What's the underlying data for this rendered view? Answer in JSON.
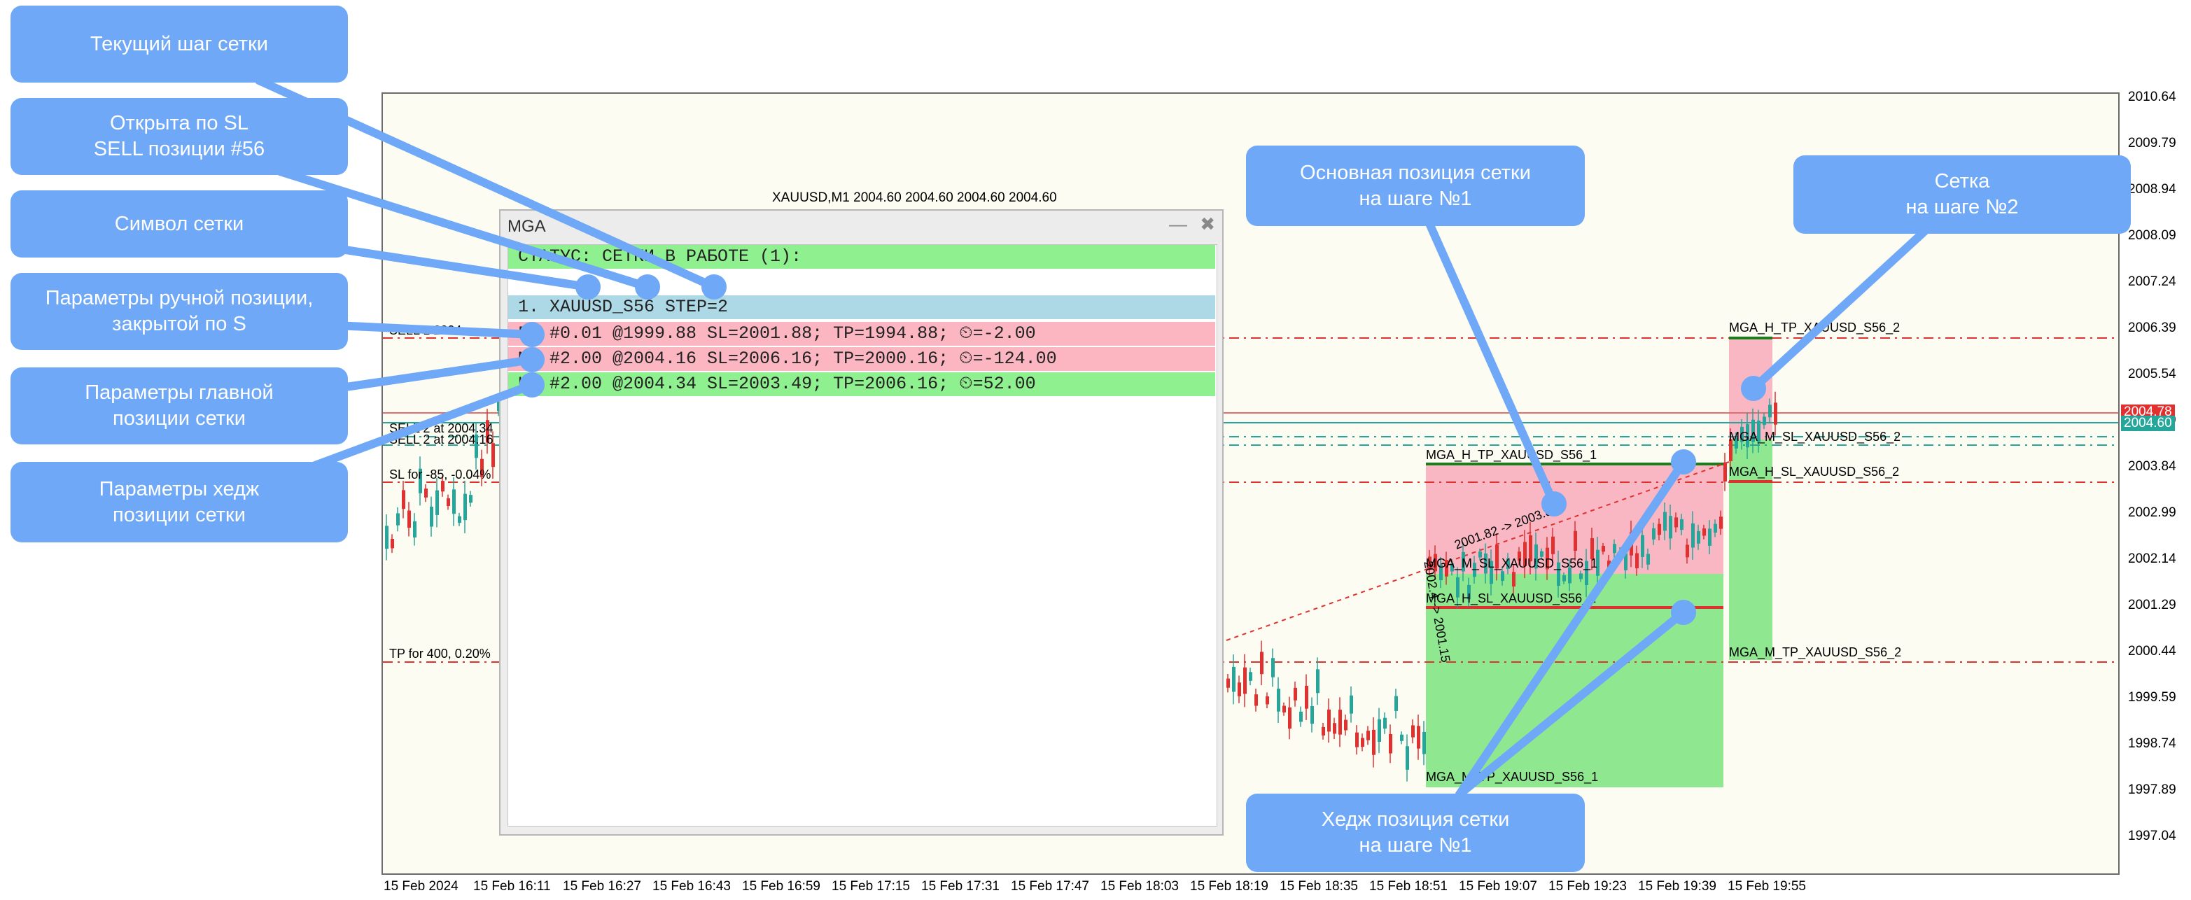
{
  "chart": {
    "header": "XAUUSD,M1  2004.60 2004.60 2004.60 2004.60",
    "price_ticks": [
      "2010.64",
      "2009.79",
      "2008.94",
      "2008.09",
      "2007.24",
      "2006.39",
      "2005.54",
      "2004.69",
      "2003.84",
      "2002.99",
      "2002.14",
      "2001.29",
      "2000.44",
      "1999.59",
      "1998.74",
      "1997.89",
      "1997.04"
    ],
    "price_current_red": "2004.78",
    "price_current_teal": "2004.60",
    "time_ticks": [
      "15 Feb 2024",
      "15 Feb 16:11",
      "15 Feb 16:27",
      "15 Feb 16:43",
      "15 Feb 16:59",
      "15 Feb 17:15",
      "15 Feb 17:31",
      "15 Feb 17:47",
      "15 Feb 18:03",
      "15 Feb 18:19",
      "15 Feb 18:35",
      "15 Feb 18:51",
      "15 Feb 19:07",
      "15 Feb 19:23",
      "15 Feb 19:39",
      "15 Feb 19:55"
    ],
    "left_labels": {
      "sell_sl": "SELL 1  2004.",
      "sell2a": "SELL 2 at 2004.34",
      "sell2b": "SELL 2 at 2004.16",
      "sl_for": "SL for -85, -0.04%",
      "tp_for": "TP for 400, 0.20%"
    },
    "levels": {
      "h_tp_2": "MGA_H_TP_XAUUSD_S56_2",
      "m_sl_2": "MGA_M_SL_XAUUSD_S56_2",
      "h_sl_2": "MGA_H_SL_XAUUSD_S56_2",
      "m_tp_2": "MGA_M_TP_XAUUSD_S56_2",
      "h_tp_1": "MGA_H_TP_XAUUSD_S56_1",
      "m_sl_1": "MGA_M_SL_XAUUSD_S56_1",
      "h_sl_1": "MGA_H_SL_XAUUSD_S56_1",
      "m_tp_1": "MGA_M_TP_XAUUSD_S56_1"
    },
    "trend_label_1": "2001.82 -> 2003.82",
    "trend_label_2": "2002.4 -> 2001.15",
    "colors": {
      "profit_zone": "#f9b7c3",
      "loss_zone": "#8fe88f",
      "level_red": "#e03030",
      "level_green": "#1a7f1a",
      "teal": "#26a69a"
    }
  },
  "panel": {
    "title": "MGA",
    "status": "СТАТУС: СЕТКИ В РАБОТЕ (1):",
    "grid_row": "1. XAUUSD_S56 STEP=2",
    "rows": [
      {
        "text": "F: #0.01 @1999.88 SL=2001.88; TP=1994.88; ⏲=-2.00",
        "color": "#fbb6c1"
      },
      {
        "text": "M: #2.00 @2004.16 SL=2006.16; TP=2000.16; ⏲=-124.00",
        "color": "#fbb6c1"
      },
      {
        "text": "H: #2.00 @2004.34 SL=2003.49; TP=2006.16; ⏲=52.00",
        "color": "#8ef08e"
      }
    ],
    "status_color": "#8ef08e",
    "grid_row_color": "#add8e6"
  },
  "callouts": {
    "current_step": "Текущий шаг сетки",
    "opened_by_sl": "Открыта по SL\nSELL позиции #56",
    "grid_symbol": "Символ сетки",
    "manual_params": "Параметры ручной позиции,\nзакрытой по S",
    "main_params": "Параметры главной\nпозиции сетки",
    "hedge_params": "Параметры хедж\nпозиции сетки",
    "main_position": "Основная позиция сетки\nна шаге №1",
    "grid_step2": "Сетка\nна шаге №2",
    "hedge_position": "Хедж позиция сетки\nна шаге №1"
  }
}
